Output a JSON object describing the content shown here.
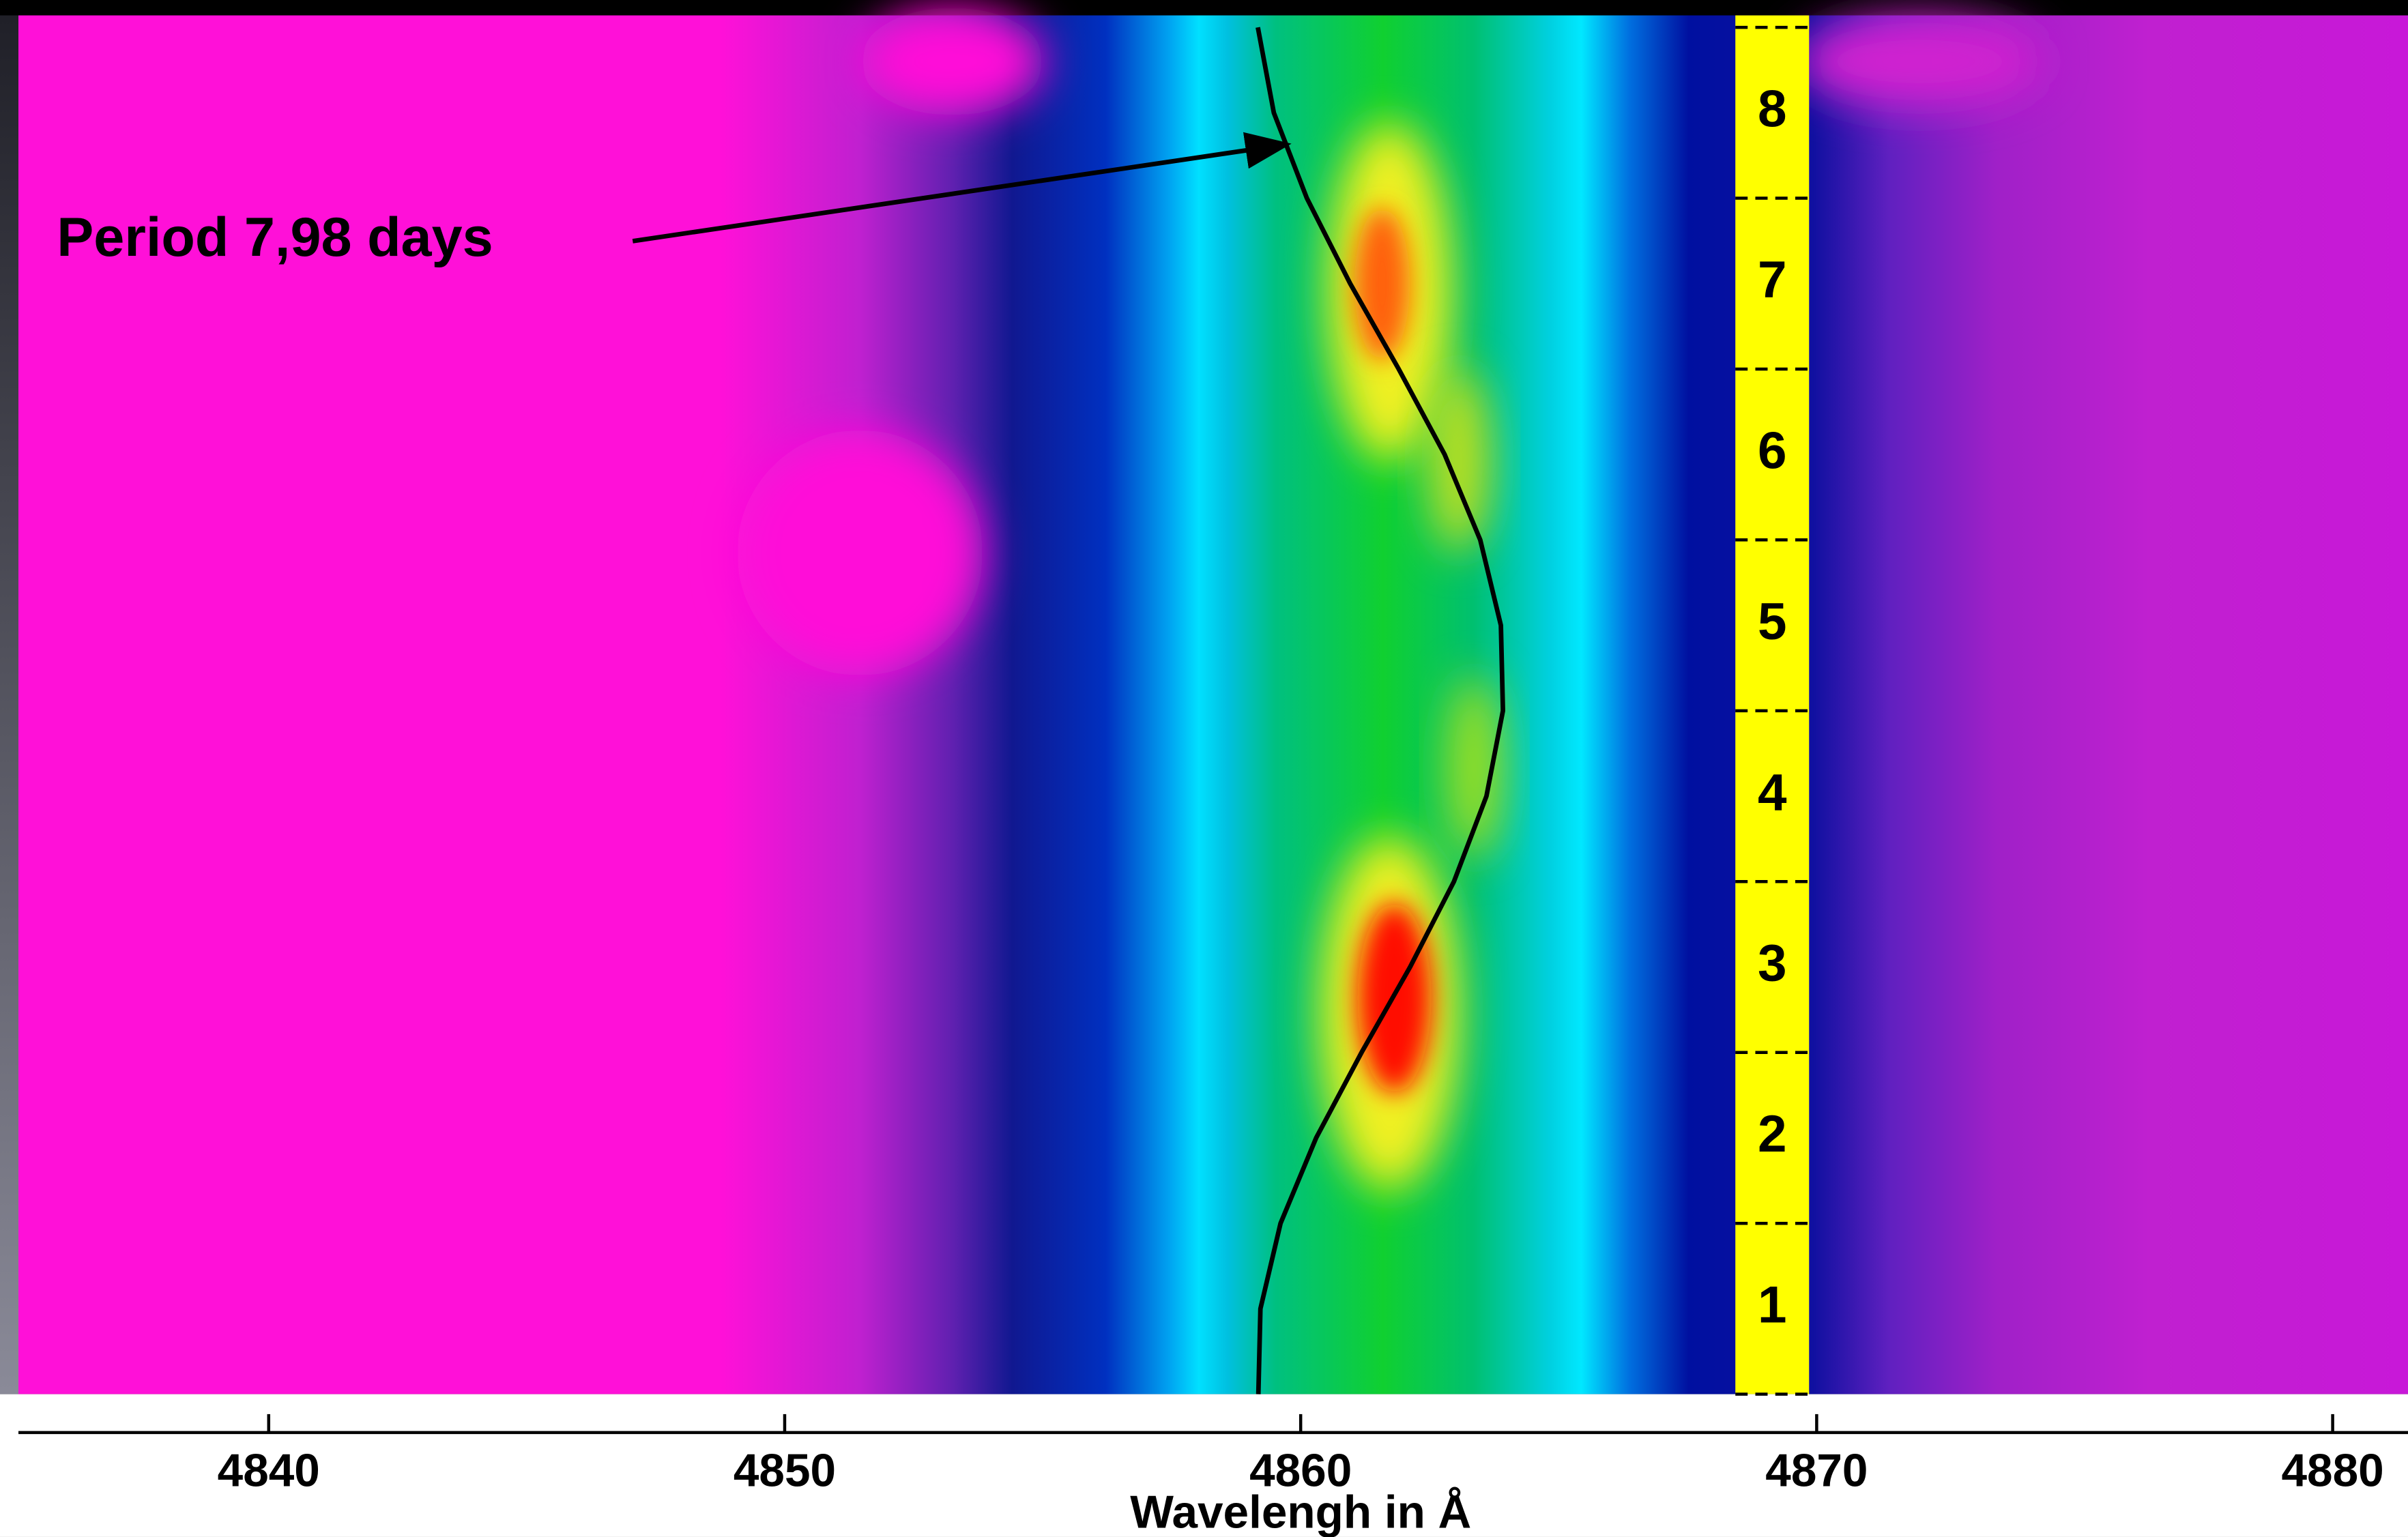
{
  "chart_data": {
    "type": "line",
    "annotation": "Period 7,98 days",
    "x_label": "Wavelengh in Å",
    "x": [
      4859.18,
      4859.22,
      4859.61,
      4860.3,
      4861.18,
      4862.12,
      4862.97,
      4863.6,
      4863.92,
      4863.88,
      4863.48,
      4862.79,
      4861.9,
      4860.96,
      4860.12,
      4859.48,
      4859.17
    ],
    "y": [
      0,
      0.5,
      1,
      1.5,
      2,
      2.5,
      3,
      3.5,
      4,
      4.5,
      5,
      5.5,
      6,
      6.5,
      7,
      7.5,
      8
    ],
    "color": "#000000",
    "xlim": [
      4835.15,
      4881.46
    ],
    "ylim": [
      0,
      8.07
    ],
    "xticks": [
      4840,
      4850,
      4860,
      4870,
      4880
    ],
    "yticks": [
      {
        "value": 0.5,
        "label": "1"
      },
      {
        "value": 1.5,
        "label": "2"
      },
      {
        "value": 2.5,
        "label": "3"
      },
      {
        "value": 3.5,
        "label": "4"
      },
      {
        "value": 4.5,
        "label": "5"
      },
      {
        "value": 5.5,
        "label": "6"
      },
      {
        "value": 6.5,
        "label": "7"
      },
      {
        "value": 7.5,
        "label": "8"
      }
    ]
  }
}
